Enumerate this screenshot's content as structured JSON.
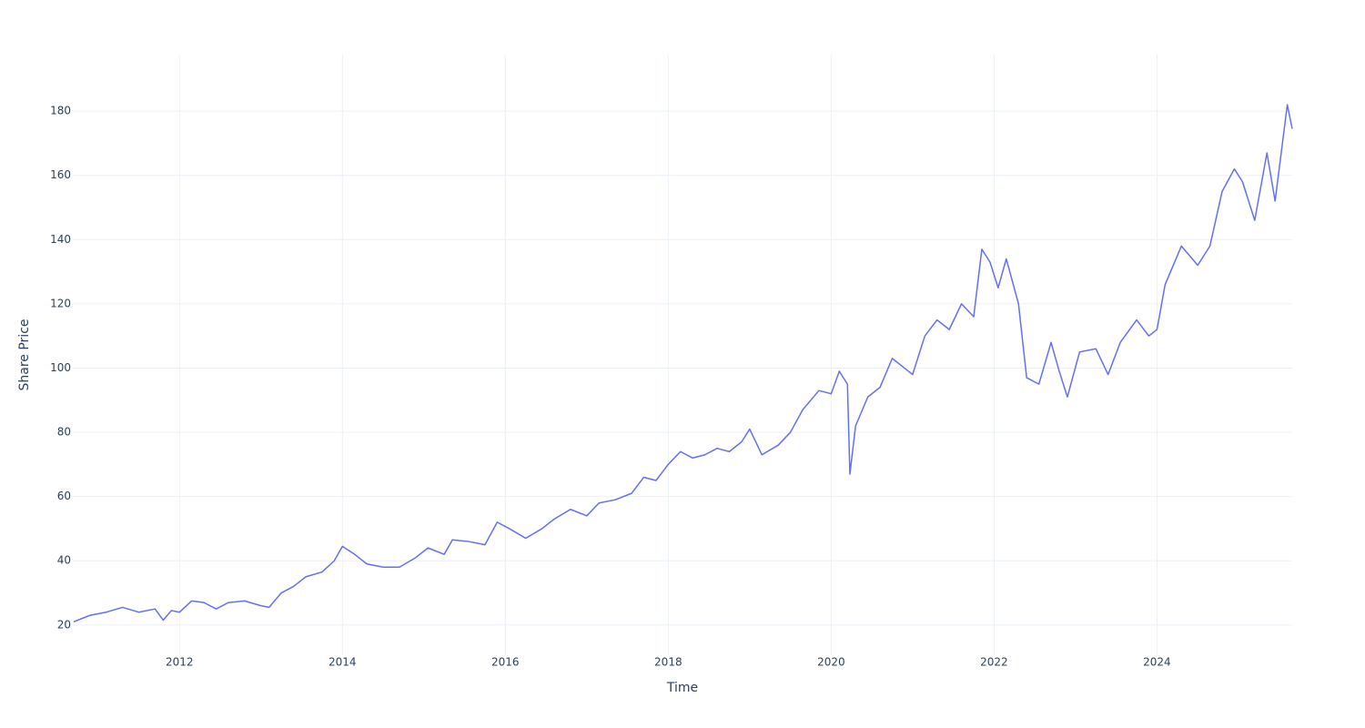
{
  "chart_data": {
    "type": "line",
    "xlabel": "Time",
    "ylabel": "Share Price",
    "x": [
      2010.7,
      2010.9,
      2011.1,
      2011.3,
      2011.5,
      2011.7,
      2011.8,
      2011.9,
      2012.0,
      2012.15,
      2012.3,
      2012.45,
      2012.6,
      2012.8,
      2013.0,
      2013.1,
      2013.25,
      2013.4,
      2013.55,
      2013.75,
      2013.9,
      2014.0,
      2014.15,
      2014.3,
      2014.5,
      2014.7,
      2014.9,
      2015.05,
      2015.25,
      2015.35,
      2015.55,
      2015.75,
      2015.9,
      2016.05,
      2016.25,
      2016.45,
      2016.6,
      2016.8,
      2017.0,
      2017.15,
      2017.35,
      2017.55,
      2017.7,
      2017.85,
      2018.0,
      2018.15,
      2018.3,
      2018.45,
      2018.6,
      2018.75,
      2018.9,
      2019.0,
      2019.15,
      2019.35,
      2019.5,
      2019.65,
      2019.85,
      2020.0,
      2020.1,
      2020.2,
      2020.23,
      2020.3,
      2020.45,
      2020.6,
      2020.75,
      2020.9,
      2021.0,
      2021.15,
      2021.3,
      2021.45,
      2021.6,
      2021.75,
      2021.85,
      2021.95,
      2022.05,
      2022.15,
      2022.3,
      2022.4,
      2022.55,
      2022.7,
      2022.8,
      2022.9,
      2023.05,
      2023.25,
      2023.4,
      2023.55,
      2023.75,
      2023.9,
      2024.0,
      2024.1,
      2024.3,
      2024.5,
      2024.65,
      2024.8,
      2024.95,
      2025.05,
      2025.2,
      2025.35,
      2025.45,
      2025.6,
      2025.66
    ],
    "values": [
      21,
      23,
      24,
      25.5,
      24,
      25,
      21.5,
      24.5,
      24,
      27.5,
      27,
      25,
      27,
      27.5,
      26,
      25.5,
      30,
      32,
      35,
      36.5,
      40,
      44.5,
      42,
      39,
      38,
      38,
      41,
      44,
      42,
      46.5,
      46,
      45,
      52,
      50,
      47,
      50,
      53,
      56,
      54,
      58,
      59,
      61,
      66,
      65,
      70,
      74,
      72,
      73,
      75,
      74,
      77,
      81,
      73,
      76,
      80,
      87,
      93,
      92,
      99,
      95,
      67,
      82,
      91,
      94,
      103,
      100,
      98,
      110,
      115,
      112,
      120,
      116,
      137,
      133,
      125,
      134,
      120,
      97,
      95,
      108,
      99,
      91,
      105,
      106,
      98,
      108,
      115,
      110,
      112,
      126,
      138,
      132,
      138,
      155,
      162,
      158,
      146,
      167,
      152,
      182,
      174.5
    ],
    "color": "#636efa",
    "xlim": [
      2010.69,
      2025.66
    ],
    "xticks": [
      2012,
      2014,
      2016,
      2018,
      2020,
      2022,
      2024
    ],
    "ylim": [
      10.6,
      197.6
    ],
    "yticks": [
      20,
      40,
      60,
      80,
      100,
      120,
      140,
      160,
      180
    ],
    "grid": true
  }
}
